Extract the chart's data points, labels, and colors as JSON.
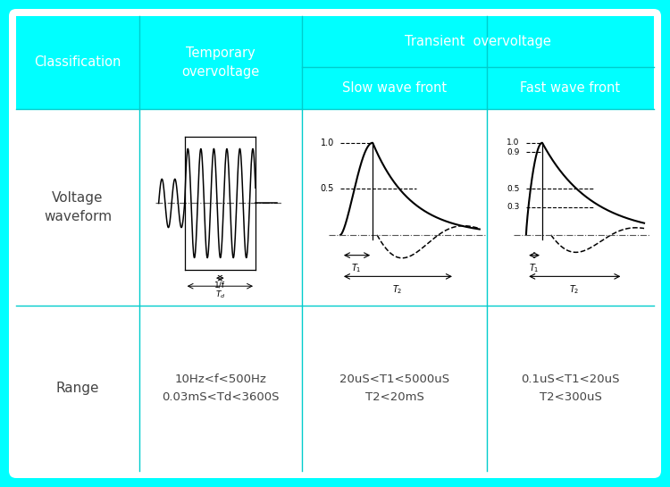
{
  "bg_color": "#00FFFF",
  "white": "#FFFFFF",
  "text_dark": "#444444",
  "cyan_header": "#00FFFF",
  "fig_w": 7.5,
  "fig_h": 5.45,
  "col1_header": "Classification",
  "col2_header": "Temporary\novervoltage",
  "transient_header": "Transient  overvoltage",
  "slow_header": "Slow wave front",
  "fast_header": "Fast wave front",
  "row2_label": "Voltage\nwaveform",
  "row3_label": "Range",
  "temp_range": "10Hz<f<500Hz\n0.03mS<Td<3600S",
  "slow_range": "20uS<T1<5000uS\nT2<20mS",
  "fast_range": "0.1uS<T1<20uS\nT2<300uS"
}
